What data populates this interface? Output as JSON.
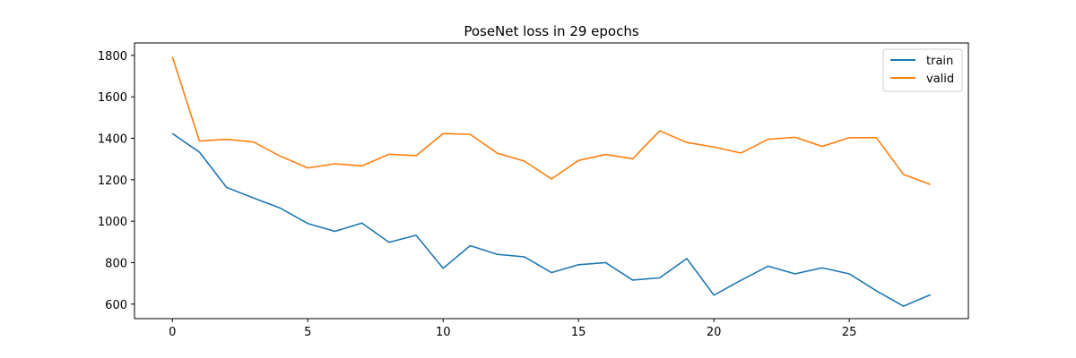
{
  "chart_data": {
    "type": "line",
    "title": "PoseNet loss in 29 epochs",
    "xlabel": "",
    "ylabel": "",
    "x": [
      0,
      1,
      2,
      3,
      4,
      5,
      6,
      7,
      8,
      9,
      10,
      11,
      12,
      13,
      14,
      15,
      16,
      17,
      18,
      19,
      20,
      21,
      22,
      23,
      24,
      25,
      26,
      27,
      28
    ],
    "xlim": [
      -1.4,
      29.4
    ],
    "ylim": [
      530,
      1860
    ],
    "xticks": [
      0,
      5,
      10,
      15,
      20,
      25
    ],
    "yticks": [
      600,
      800,
      1000,
      1200,
      1400,
      1600,
      1800
    ],
    "xtick_labels": [
      "0",
      "5",
      "10",
      "15",
      "20",
      "25"
    ],
    "ytick_labels": [
      "600",
      "800",
      "1000",
      "1200",
      "1400",
      "1600",
      "1800"
    ],
    "grid": false,
    "legend_position": "top-right",
    "series": [
      {
        "name": "train",
        "color": "#1f77b4",
        "values": [
          1423,
          1333,
          1163,
          1112,
          1062,
          989,
          951,
          991,
          898,
          932,
          773,
          882,
          840,
          828,
          752,
          790,
          800,
          716,
          727,
          820,
          643,
          715,
          783,
          746,
          775,
          746,
          664,
          590,
          645
        ]
      },
      {
        "name": "valid",
        "color": "#ff7f0e",
        "values": [
          1793,
          1387,
          1395,
          1382,
          1313,
          1257,
          1277,
          1267,
          1323,
          1316,
          1423,
          1419,
          1328,
          1290,
          1204,
          1293,
          1322,
          1301,
          1436,
          1380,
          1358,
          1329,
          1395,
          1405,
          1361,
          1403,
          1403,
          1226,
          1177
        ]
      }
    ]
  }
}
